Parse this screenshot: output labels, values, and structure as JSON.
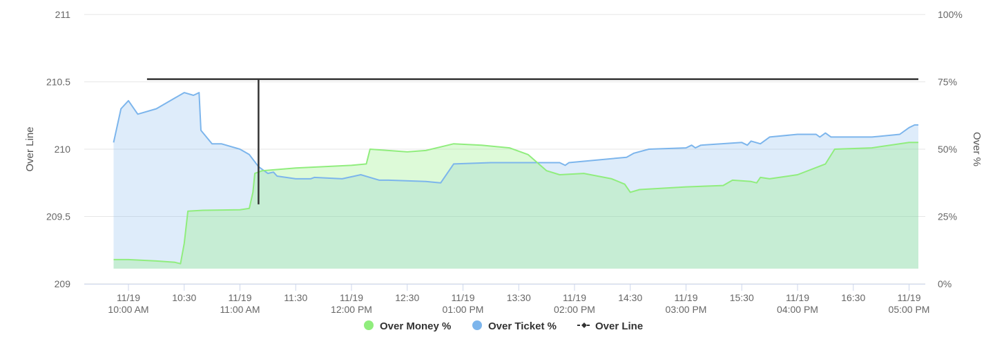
{
  "chart_data": {
    "type": "area",
    "x_labels": [
      {
        "time": "10:00",
        "lines": [
          "11/19",
          "10:00 AM"
        ]
      },
      {
        "time": "10:30",
        "lines": [
          "10:30"
        ]
      },
      {
        "time": "11:00",
        "lines": [
          "11/19",
          "11:00 AM"
        ]
      },
      {
        "time": "11:30",
        "lines": [
          "11:30"
        ]
      },
      {
        "time": "12:00",
        "lines": [
          "11/19",
          "12:00 PM"
        ]
      },
      {
        "time": "12:30",
        "lines": [
          "12:30"
        ]
      },
      {
        "time": "13:00",
        "lines": [
          "11/19",
          "01:00 PM"
        ]
      },
      {
        "time": "13:30",
        "lines": [
          "13:30"
        ]
      },
      {
        "time": "14:00",
        "lines": [
          "11/19",
          "02:00 PM"
        ]
      },
      {
        "time": "14:30",
        "lines": [
          "14:30"
        ]
      },
      {
        "time": "15:00",
        "lines": [
          "11/19",
          "03:00 PM"
        ]
      },
      {
        "time": "15:30",
        "lines": [
          "15:30"
        ]
      },
      {
        "time": "16:00",
        "lines": [
          "11/19",
          "04:00 PM"
        ]
      },
      {
        "time": "16:30",
        "lines": [
          "16:30"
        ]
      },
      {
        "time": "17:00",
        "lines": [
          "11/19",
          "05:00 PM"
        ]
      }
    ],
    "y_left": {
      "label": "Over Line",
      "ticks": [
        "209",
        "209.5",
        "210",
        "210.5",
        "211"
      ],
      "min": 209,
      "max": 211
    },
    "y_right": {
      "label": "Over %",
      "ticks": [
        "0%",
        "25%",
        "50%",
        "75%",
        "100%"
      ],
      "min": 0,
      "max": 100
    },
    "grid": true,
    "legend_position": "bottom",
    "series": [
      {
        "name": "Over Money %",
        "axis": "right",
        "color": "#90ed7d",
        "fill": "rgba(144,237,125,0.30)",
        "points": [
          [
            "09:52",
            9
          ],
          [
            "10:00",
            9
          ],
          [
            "10:15",
            8.5
          ],
          [
            "10:25",
            8
          ],
          [
            "10:28",
            7.5
          ],
          [
            "10:30",
            15
          ],
          [
            "10:32",
            27
          ],
          [
            "10:40",
            27.3
          ],
          [
            "11:00",
            27.5
          ],
          [
            "11:05",
            28
          ],
          [
            "11:07",
            34
          ],
          [
            "11:08",
            41
          ],
          [
            "11:12",
            42
          ],
          [
            "11:30",
            43
          ],
          [
            "12:00",
            44
          ],
          [
            "12:08",
            44.5
          ],
          [
            "12:10",
            50
          ],
          [
            "12:30",
            49
          ],
          [
            "12:40",
            49.5
          ],
          [
            "12:55",
            52
          ],
          [
            "13:10",
            51.5
          ],
          [
            "13:25",
            50.5
          ],
          [
            "13:35",
            48
          ],
          [
            "13:45",
            42
          ],
          [
            "13:52",
            40.5
          ],
          [
            "14:05",
            41
          ],
          [
            "14:20",
            39
          ],
          [
            "14:27",
            37
          ],
          [
            "14:30",
            34
          ],
          [
            "14:35",
            35
          ],
          [
            "15:00",
            36
          ],
          [
            "15:20",
            36.5
          ],
          [
            "15:25",
            38.5
          ],
          [
            "15:35",
            38
          ],
          [
            "15:38",
            37.5
          ],
          [
            "15:40",
            39.5
          ],
          [
            "15:45",
            39
          ],
          [
            "16:00",
            40.5
          ],
          [
            "16:15",
            44.5
          ],
          [
            "16:20",
            50
          ],
          [
            "16:40",
            50.5
          ],
          [
            "17:00",
            52.5
          ],
          [
            "17:05",
            52.5
          ]
        ]
      },
      {
        "name": "Over Ticket %",
        "axis": "right",
        "color": "#7cb5ec",
        "fill": "rgba(124,181,236,0.25)",
        "points": [
          [
            "09:52",
            52.5
          ],
          [
            "09:56",
            65
          ],
          [
            "10:00",
            68
          ],
          [
            "10:05",
            63
          ],
          [
            "10:15",
            65
          ],
          [
            "10:25",
            69
          ],
          [
            "10:30",
            71
          ],
          [
            "10:35",
            70
          ],
          [
            "10:38",
            71
          ],
          [
            "10:39",
            57
          ],
          [
            "10:45",
            52
          ],
          [
            "10:50",
            52
          ],
          [
            "11:00",
            50
          ],
          [
            "11:05",
            48
          ],
          [
            "11:10",
            43.5
          ],
          [
            "11:15",
            41
          ],
          [
            "11:18",
            41.5
          ],
          [
            "11:20",
            40
          ],
          [
            "11:30",
            39
          ],
          [
            "11:38",
            39
          ],
          [
            "11:40",
            39.5
          ],
          [
            "11:55",
            39
          ],
          [
            "12:05",
            40.5
          ],
          [
            "12:15",
            38.5
          ],
          [
            "12:20",
            38.5
          ],
          [
            "12:40",
            38
          ],
          [
            "12:48",
            37.5
          ],
          [
            "12:55",
            44.5
          ],
          [
            "13:15",
            45
          ],
          [
            "13:40",
            45
          ],
          [
            "13:52",
            45
          ],
          [
            "13:55",
            44
          ],
          [
            "13:57",
            45
          ],
          [
            "14:28",
            47
          ],
          [
            "14:32",
            48.5
          ],
          [
            "14:40",
            50
          ],
          [
            "15:00",
            50.5
          ],
          [
            "15:03",
            51.5
          ],
          [
            "15:05",
            50.5
          ],
          [
            "15:08",
            51.5
          ],
          [
            "15:30",
            52.5
          ],
          [
            "15:33",
            51.5
          ],
          [
            "15:35",
            53
          ],
          [
            "15:40",
            52
          ],
          [
            "15:45",
            54.5
          ],
          [
            "16:00",
            55.5
          ],
          [
            "16:10",
            55.5
          ],
          [
            "16:12",
            54.5
          ],
          [
            "16:15",
            56
          ],
          [
            "16:18",
            54.5
          ],
          [
            "16:40",
            54.5
          ],
          [
            "16:55",
            55.5
          ],
          [
            "17:00",
            58
          ],
          [
            "17:03",
            59
          ],
          [
            "17:05",
            59
          ]
        ]
      }
    ],
    "over_line": {
      "name": "Over Line",
      "axis": "left",
      "color": "#333333",
      "points": [
        [
          "10:10",
          210.52
        ],
        [
          "11:10",
          210.52
        ],
        [
          "11:10",
          209.59
        ],
        [
          "11:10",
          210.52
        ],
        [
          "17:05",
          210.52
        ]
      ]
    }
  }
}
